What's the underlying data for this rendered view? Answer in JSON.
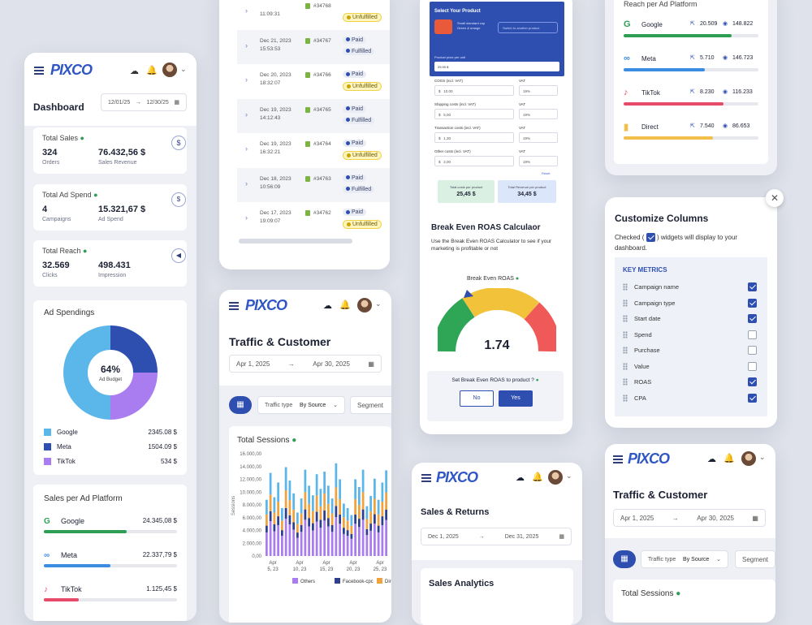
{
  "dashboard": {
    "brand": "PIXCO",
    "title": "Dashboard",
    "date_from": "12/01/25",
    "date_to": "12/30/25",
    "total_sales": {
      "label": "Total Sales",
      "orders": "324",
      "orders_label": "Orders",
      "revenue": "76.432,56 $",
      "revenue_label": "Sales Revenue"
    },
    "total_ad_spend": {
      "label": "Total Ad Spend",
      "campaigns": "4",
      "campaigns_label": "Campaigns",
      "spend": "15.321,67 $",
      "spend_label": "Ad Spend"
    },
    "total_reach": {
      "label": "Total Reach",
      "clicks": "32.569",
      "clicks_label": "Clicks",
      "impression": "498.431",
      "impression_label": "Impression"
    },
    "ad_spendings": {
      "title": "Ad Spendings",
      "center_pct": "64%",
      "center_label": "Ad Budget",
      "legend": [
        {
          "name": "Google",
          "value": "2345.08 $",
          "color": "#5bb6ea"
        },
        {
          "name": "Meta",
          "value": "1504.09 $",
          "color": "#2e4fb0"
        },
        {
          "name": "TikTok",
          "value": "534 $",
          "color": "#a97cf0"
        }
      ]
    },
    "sales_platform": {
      "title": "Sales per Ad Platform",
      "items": [
        {
          "name": "Google",
          "value": "24.345,08 $",
          "pct": 0.62,
          "color": "#2f9e55"
        },
        {
          "name": "Meta",
          "value": "22.337,79 $",
          "pct": 0.5,
          "color": "#3a8de0"
        },
        {
          "name": "TikTok",
          "value": "1.125,45 $",
          "pct": 0.26,
          "color": "#e84a6a"
        }
      ]
    }
  },
  "orders": {
    "rows": [
      {
        "date": "",
        "time": "11:09:31",
        "order": "#34768",
        "s1": "",
        "s2": "Unfulfilled"
      },
      {
        "date": "Dec 21, 2023",
        "time": "15:53:53",
        "order": "#34767",
        "s1": "Paid",
        "s2": "Fulfilled"
      },
      {
        "date": "Dec 20, 2023",
        "time": "18:32:07",
        "order": "#34766",
        "s1": "Paid",
        "s2": "Unfulfilled"
      },
      {
        "date": "Dec 19, 2023",
        "time": "14:12:43",
        "order": "#34765",
        "s1": "Paid",
        "s2": "Fulfilled"
      },
      {
        "date": "Dec 19, 2023",
        "time": "16:32:21",
        "order": "#34764",
        "s1": "Paid",
        "s2": "Unfulfilled"
      },
      {
        "date": "Dec 18, 2023",
        "time": "10:56:09",
        "order": "#34763",
        "s1": "Paid",
        "s2": "Fulfilled"
      },
      {
        "date": "Dec 17, 2023",
        "time": "19:09:07",
        "order": "#34762",
        "s1": "Paid",
        "s2": "Unfulfilled"
      }
    ]
  },
  "traffic": {
    "brand": "PIXCO",
    "title": "Traffic & Customer",
    "date_from": "Apr 1, 2025",
    "date_to": "Apr 30, 2025",
    "traffic_type": "Traffic type",
    "by_source": "By Source",
    "segment": "Segment",
    "sessions_title": "Total Sessions",
    "yaxis": "Sessions",
    "chart_data": {
      "type": "bar",
      "stacked": true,
      "categories": [
        "Apr 5, 23",
        "Apr 10, 23",
        "Apr 15, 23",
        "Apr 20, 23",
        "Apr 25, 23"
      ],
      "yticks": [
        "16.000,00",
        "14.000,00",
        "12.000,00",
        "10.000,00",
        "8.000,00",
        "6.000,00",
        "4.000,00",
        "2.000,00",
        "0,00"
      ],
      "ylim": [
        0,
        16000
      ],
      "series": [
        {
          "name": "Others",
          "color": "#a97cf0"
        },
        {
          "name": "Facebook-cpc",
          "color": "#2e3f8f"
        },
        {
          "name": "Direct",
          "color": "#f0a23c"
        }
      ],
      "totals": [
        8800,
        13000,
        9200,
        11500,
        7500,
        13900,
        11800,
        9800,
        6800,
        9000,
        13500,
        11000,
        9500,
        12800,
        10500,
        13200,
        11000,
        9000,
        14500,
        12000,
        8200,
        7500,
        6400,
        12000,
        10800,
        13500,
        7800,
        9400,
        12100,
        8800,
        11500,
        13400
      ]
    }
  },
  "roas": {
    "select_product": "Select Your Product",
    "product_line1": "Small standard cup",
    "product_line2": "Green & orange",
    "switch_label": "Switch to another product",
    "price_label": "Product price per unit",
    "price_value": "29.90 $",
    "cogs_label": "COGS (incl. VAT)",
    "cogs_value": "10,00",
    "vat_label": "VAT",
    "vat_value": "19%",
    "ship_label": "Shipping costs (incl. VAT)",
    "ship_value": "5,00",
    "trans_label": "Transaction costs (incl. VAT)",
    "trans_value": "1,30",
    "other_label": "Other costs (incl. VAT)",
    "other_value": "2,00",
    "reset": "Reset",
    "total_cost_label": "Total costs per product",
    "total_cost": "25,45 $",
    "total_rev_label": "Total Revenue per product",
    "total_rev": "34,45 $",
    "calc_title": "Break Even ROAS Calculaor",
    "calc_desc": "Use the Break Even ROAS Calculator to see if your marketing is profitable or not",
    "gauge_title": "Break Even ROAS",
    "gauge_value": "1.74",
    "question": "Set Break Even ROAS to product ?",
    "no": "No",
    "yes": "Yes"
  },
  "sales_returns": {
    "brand": "PIXCO",
    "title": "Sales & Returns",
    "date_from": "Dec 1, 2025",
    "date_to": "Dec 31, 2025",
    "analytics": "Sales Analytics"
  },
  "reach": {
    "title": "Reach per Ad Platform",
    "items": [
      {
        "name": "Google",
        "a": "20.509",
        "b": "148.822",
        "pct": 0.8,
        "color": "#2f9e55"
      },
      {
        "name": "Meta",
        "a": "5.710",
        "b": "146.723",
        "pct": 0.6,
        "color": "#3a8de0"
      },
      {
        "name": "TikTok",
        "a": "8.230",
        "b": "116.233",
        "pct": 0.74,
        "color": "#e84a6a"
      },
      {
        "name": "Direct",
        "a": "7.540",
        "b": "86.653",
        "pct": 0.66,
        "color": "#f2c04a"
      }
    ]
  },
  "customize": {
    "title": "Customize Columns",
    "desc1": "Checked (",
    "desc2": ") widgets will display to your dashboard.",
    "section": "KEY METRICS",
    "items": [
      {
        "label": "Campaign name",
        "on": true
      },
      {
        "label": "Campaign type",
        "on": true
      },
      {
        "label": "Start date",
        "on": true
      },
      {
        "label": "Spend",
        "on": false
      },
      {
        "label": "Purchase",
        "on": false
      },
      {
        "label": "Value",
        "on": false
      },
      {
        "label": "ROAS",
        "on": true
      },
      {
        "label": "CPA",
        "on": true
      }
    ]
  },
  "traffic2": {
    "brand": "PIXCO",
    "title": "Traffic & Customer",
    "date_from": "Apr 1, 2025",
    "date_to": "Apr 30, 2025",
    "traffic_type": "Traffic type",
    "by_source": "By Source",
    "segment": "Segment",
    "sessions_title": "Total Sessions"
  }
}
